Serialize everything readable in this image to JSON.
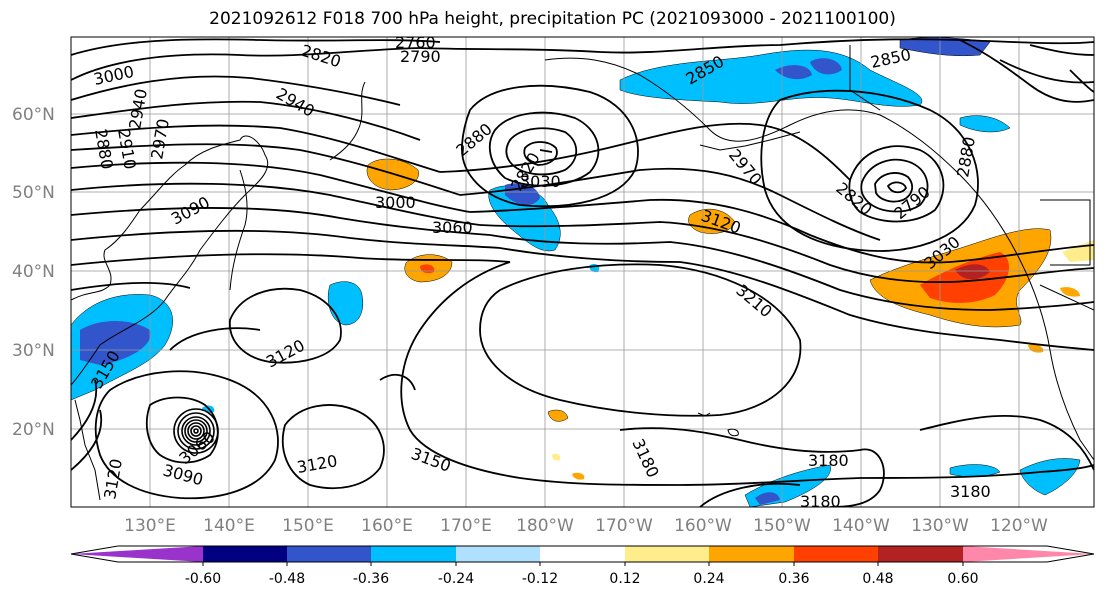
{
  "title": "2021092612 F018 700 hPa height, precipitation PC (2021093000 - 2021100100)",
  "lat_labels": [
    "60°N",
    "50°N",
    "40°N",
    "30°N",
    "20°N"
  ],
  "lon_labels": [
    "130°E",
    "140°E",
    "150°E",
    "160°E",
    "170°E",
    "180°W",
    "170°W",
    "160°W",
    "150°W",
    "140°W",
    "130°W",
    "120°W"
  ],
  "contour_labels": [
    "3000",
    "2880",
    "2910",
    "2940",
    "2970",
    "2820",
    "2760",
    "2790",
    "2940",
    "2880",
    "2850",
    "2850",
    "2820",
    "3090",
    "3000",
    "3060",
    "3030",
    "2970",
    "2820",
    "2790",
    "2880",
    "3120",
    "3030",
    "3210",
    "3150",
    "3120",
    "3060",
    "3090",
    "3120",
    "3150",
    "3180",
    "3180",
    "3180",
    "3180",
    "3120"
  ],
  "colorbar": {
    "colors": [
      "#9933cc",
      "#000080",
      "#3355cc",
      "#00bfff",
      "#b0e0ff",
      "#ffffff",
      "#ffec8b",
      "#ffa500",
      "#ff4000",
      "#b22222",
      "#ff88aa"
    ],
    "tick_labels": [
      "-0.60",
      "-0.48",
      "-0.36",
      "-0.24",
      "-0.12",
      "0.12",
      "0.24",
      "0.36",
      "0.48",
      "0.60"
    ]
  }
}
